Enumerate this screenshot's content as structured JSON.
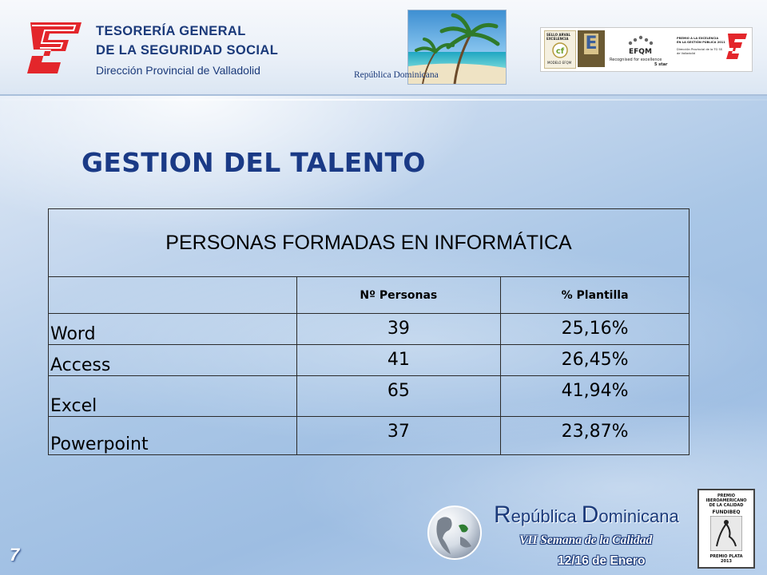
{
  "header": {
    "org_line1": "TESORERÍA GENERAL",
    "org_line2": "DE LA SEGURIDAD SOCIAL",
    "org_sub": "Dirección Provincial de Valladolid",
    "photo_caption": "República Dominicana",
    "awards": {
      "sello_line1": "SELLO ARVAL",
      "sello_line2": "EXCELENCIA",
      "sello_line3": "MODELO EFQM",
      "efqm_label": "EFQM",
      "efqm_line1": "Recognised for excellence",
      "efqm_line2": "5 star",
      "premio_line1": "PREMIO A LA EXCELENCIA",
      "premio_line2": "EN LA GESTIÓN PÚBLICA 2011",
      "premio_line3": "Dirección Provincial de la TG SS",
      "premio_line4": "de Valladolid"
    }
  },
  "page_title": "GESTION DEL TALENTO",
  "table": {
    "caption": "PERSONAS FORMADAS EN INFORMÁTICA",
    "headers": [
      "",
      "Nº Personas",
      "% Plantilla"
    ],
    "rows": [
      {
        "label": "Word",
        "personas": "39",
        "plantilla": "25,16%"
      },
      {
        "label": "Access",
        "personas": "41",
        "plantilla": "26,45%"
      },
      {
        "label": "Excel",
        "personas": "65",
        "plantilla": "41,94%"
      },
      {
        "label": "Powerpoint",
        "personas": "37",
        "plantilla": "23,87%"
      }
    ]
  },
  "footer": {
    "title_r": "R",
    "title_rest1": "epública ",
    "title_d": "D",
    "title_rest2": "ominicana",
    "week": "VII Semana de la Calidad",
    "date": "12/16  de Enero",
    "page_number": "7",
    "fundibeq_line1": "PREMIO",
    "fundibeq_line2": "IBEROAMERICANO",
    "fundibeq_line3": "DE LA CALIDAD",
    "fundibeq_name": "FUNDIBEQ",
    "fundibeq_line4": "PREMIO PLATA",
    "fundibeq_line5": "2013"
  },
  "colors": {
    "brand_blue": "#1b3a7a",
    "logo_red": "#e3262b",
    "title_blue": "#1a3a86"
  }
}
